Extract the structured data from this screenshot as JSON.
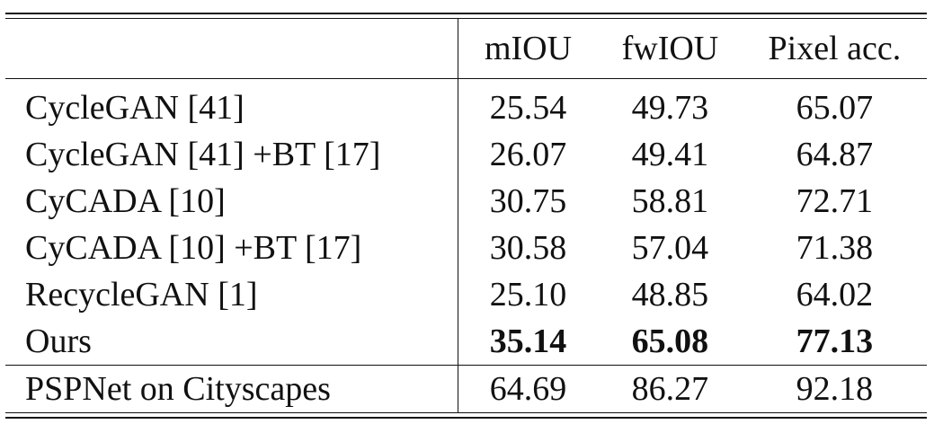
{
  "table": {
    "header": {
      "method": "",
      "col1": "mIOU",
      "col2": "fwIOU",
      "col3": "Pixel acc."
    },
    "rows": [
      {
        "method": "CycleGAN [41]",
        "miou": "25.54",
        "fwiou": "49.73",
        "pixacc": "65.07"
      },
      {
        "method": "CycleGAN [41] +BT [17]",
        "miou": "26.07",
        "fwiou": "49.41",
        "pixacc": "64.87"
      },
      {
        "method": "CyCADA [10]",
        "miou": "30.75",
        "fwiou": "58.81",
        "pixacc": "72.71"
      },
      {
        "method": "CyCADA [10] +BT [17]",
        "miou": "30.58",
        "fwiou": "57.04",
        "pixacc": "71.38"
      },
      {
        "method": "RecycleGAN [1]",
        "miou": "25.10",
        "fwiou": "48.85",
        "pixacc": "64.02"
      },
      {
        "method": "Ours",
        "miou": "35.14",
        "fwiou": "65.08",
        "pixacc": "77.13"
      }
    ],
    "reference_row": {
      "method": "PSPNet on Cityscapes",
      "miou": "64.69",
      "fwiou": "86.27",
      "pixacc": "92.18"
    }
  }
}
